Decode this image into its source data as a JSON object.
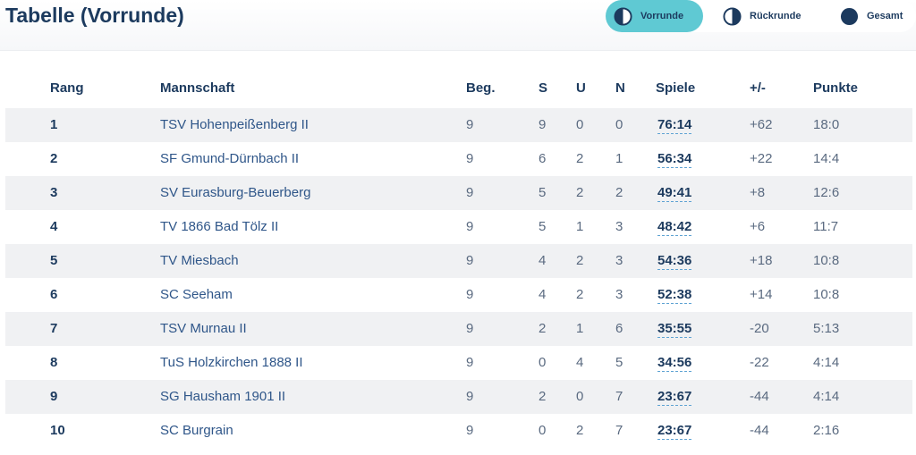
{
  "header": {
    "title": "Tabelle (Vorrunde)",
    "toggles": [
      {
        "label": "Vorrunde",
        "icon": "half-circle-left-icon",
        "active": true
      },
      {
        "label": "Rückrunde",
        "icon": "half-circle-right-icon",
        "active": false
      },
      {
        "label": "Gesamt",
        "icon": "full-circle-icon",
        "active": false
      }
    ]
  },
  "colors": {
    "accent": "#5fc9d3",
    "text": "#1c3a5e",
    "row_alt": "#f0f1f3"
  },
  "table": {
    "columns": [
      "Rang",
      "Mannschaft",
      "Beg.",
      "S",
      "U",
      "N",
      "Spiele",
      "+/-",
      "Punkte"
    ],
    "rows": [
      {
        "rang": "1",
        "team": "TSV Hohenpeißenberg II",
        "beg": "9",
        "s": "9",
        "u": "0",
        "n": "0",
        "spiele": "76:14",
        "diff": "+62",
        "punkte": "18:0"
      },
      {
        "rang": "2",
        "team": "SF Gmund-Dürnbach II",
        "beg": "9",
        "s": "6",
        "u": "2",
        "n": "1",
        "spiele": "56:34",
        "diff": "+22",
        "punkte": "14:4"
      },
      {
        "rang": "3",
        "team": "SV Eurasburg-Beuerberg",
        "beg": "9",
        "s": "5",
        "u": "2",
        "n": "2",
        "spiele": "49:41",
        "diff": "+8",
        "punkte": "12:6"
      },
      {
        "rang": "4",
        "team": "TV 1866 Bad Tölz II",
        "beg": "9",
        "s": "5",
        "u": "1",
        "n": "3",
        "spiele": "48:42",
        "diff": "+6",
        "punkte": "11:7"
      },
      {
        "rang": "5",
        "team": "TV Miesbach",
        "beg": "9",
        "s": "4",
        "u": "2",
        "n": "3",
        "spiele": "54:36",
        "diff": "+18",
        "punkte": "10:8"
      },
      {
        "rang": "6",
        "team": "SC Seeham",
        "beg": "9",
        "s": "4",
        "u": "2",
        "n": "3",
        "spiele": "52:38",
        "diff": "+14",
        "punkte": "10:8"
      },
      {
        "rang": "7",
        "team": "TSV Murnau II",
        "beg": "9",
        "s": "2",
        "u": "1",
        "n": "6",
        "spiele": "35:55",
        "diff": "-20",
        "punkte": "5:13"
      },
      {
        "rang": "8",
        "team": "TuS Holzkirchen 1888 II",
        "beg": "9",
        "s": "0",
        "u": "4",
        "n": "5",
        "spiele": "34:56",
        "diff": "-22",
        "punkte": "4:14"
      },
      {
        "rang": "9",
        "team": "SG Hausham 1901 II",
        "beg": "9",
        "s": "2",
        "u": "0",
        "n": "7",
        "spiele": "23:67",
        "diff": "-44",
        "punkte": "4:14"
      },
      {
        "rang": "10",
        "team": "SC Burgrain",
        "beg": "9",
        "s": "0",
        "u": "2",
        "n": "7",
        "spiele": "23:67",
        "diff": "-44",
        "punkte": "2:16"
      }
    ]
  }
}
